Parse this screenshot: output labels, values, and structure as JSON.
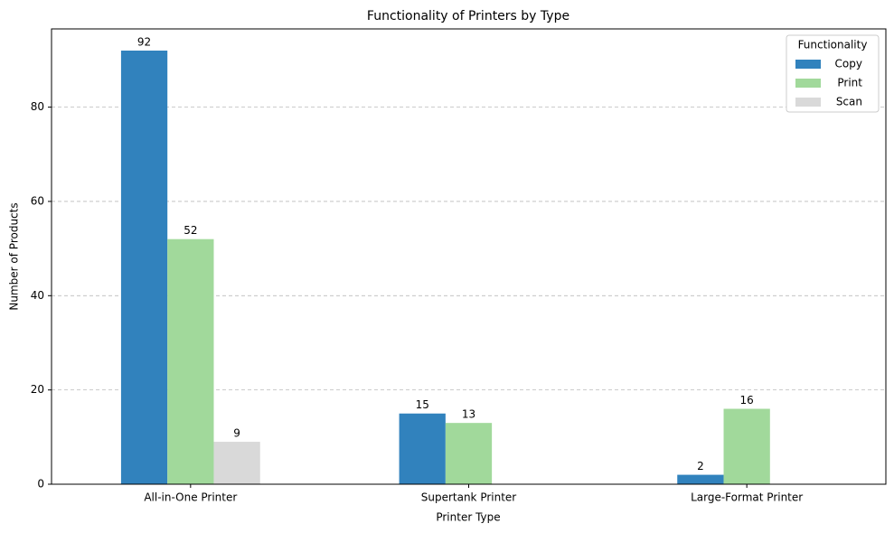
{
  "chart_data": {
    "type": "bar",
    "title": "Functionality of Printers by Type",
    "x_label": "Printer Type",
    "y_label": "Number of Products",
    "categories": [
      "All-in-One Printer",
      "Supertank Printer",
      "Large-Format Printer"
    ],
    "series": [
      {
        "name": "Copy",
        "color": "#3182bd",
        "values": [
          92,
          15,
          2
        ]
      },
      {
        "name": "Print",
        "color": "#a1d99b",
        "values": [
          52,
          13,
          16
        ]
      },
      {
        "name": "Scan",
        "color": "#d9d9d9",
        "values": [
          9,
          null,
          null
        ]
      }
    ],
    "legend_title": "Functionality",
    "legend": "upper right",
    "ylim": [
      0,
      96.6
    ],
    "yticks": [
      0,
      20,
      40,
      60,
      80
    ],
    "grid": true
  }
}
